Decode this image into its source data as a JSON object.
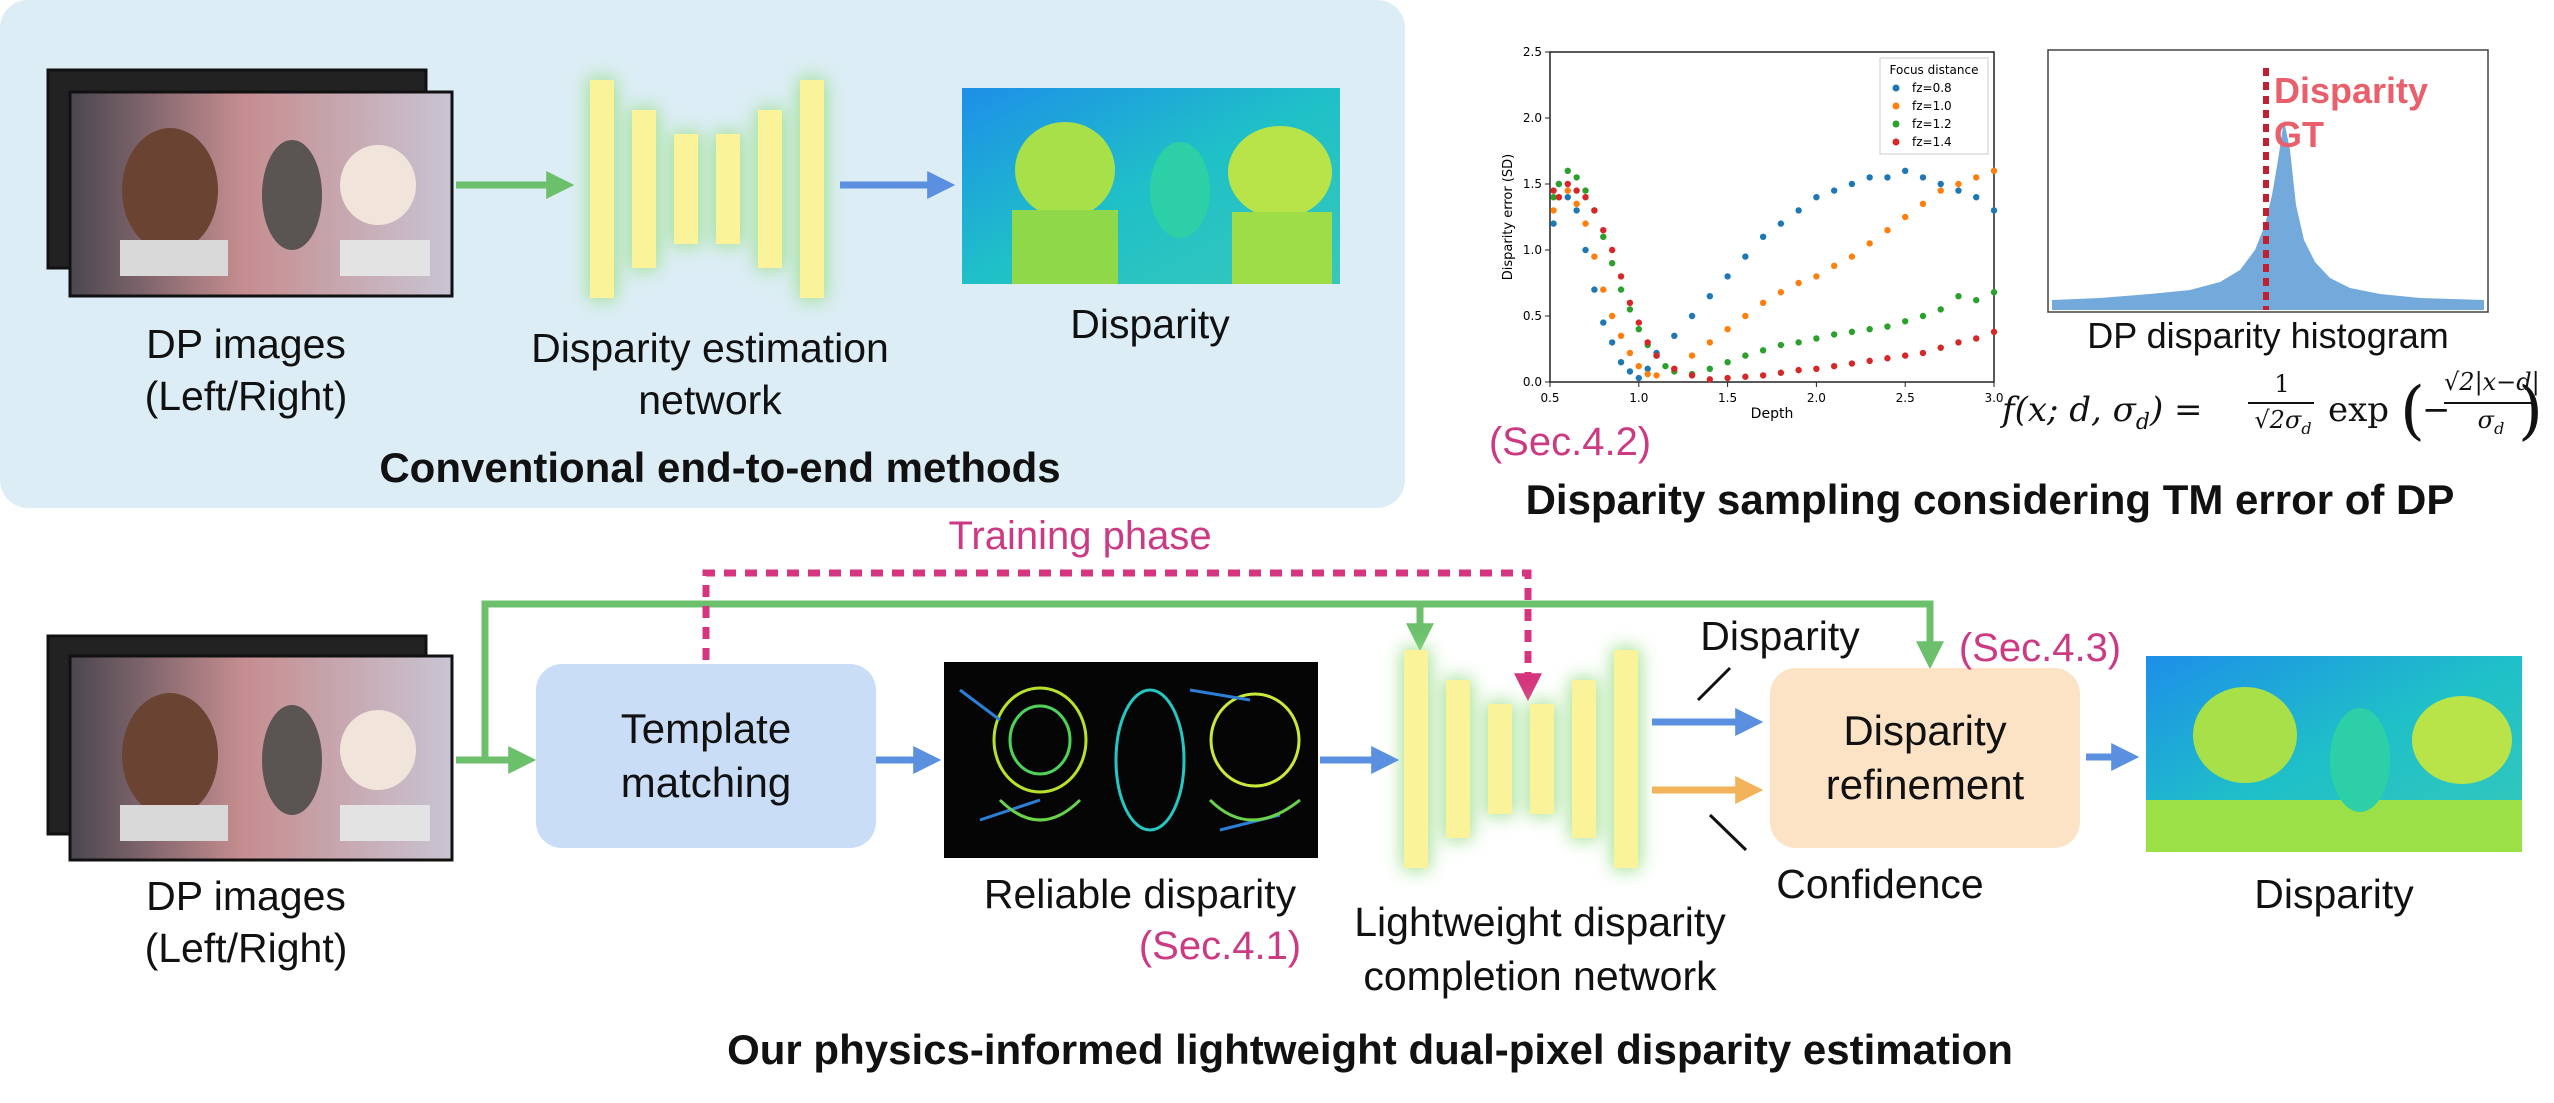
{
  "conventional": {
    "input_label_1": "DP images",
    "input_label_2": "(Left/Right)",
    "network_label_1": "Disparity estimation",
    "network_label_2": "network",
    "output_label": "Disparity",
    "title": "Conventional end-to-end methods"
  },
  "sampling": {
    "section": "(Sec.4.2)",
    "title": "Disparity sampling considering TM error of DP",
    "histogram_caption": "DP disparity histogram",
    "gt_label_1": "Disparity",
    "gt_label_2": "GT",
    "formula_lhs": "f(x; d, σ",
    "formula_lhs_sub": "d",
    "formula_eq": ") =",
    "formula_frac_num": "1",
    "formula_frac_den": "√2σ",
    "formula_frac_den_sub": "d",
    "formula_exp": "exp",
    "formula_inner_num": "√2|x−d|",
    "formula_inner_den": "σ",
    "formula_inner_den_sub": "d"
  },
  "proposed": {
    "input_label_1": "DP images",
    "input_label_2": "(Left/Right)",
    "training_phase": "Training phase",
    "tm_label_1": "Template",
    "tm_label_2": "matching",
    "reliable_label": "Reliable disparity",
    "reliable_section": "(Sec.4.1)",
    "network_label_1": "Lightweight disparity",
    "network_label_2": "completion network",
    "disparity_arrow_label": "Disparity",
    "confidence_arrow_label": "Confidence",
    "refine_section": "(Sec.4.3)",
    "refine_label_1": "Disparity",
    "refine_label_2": "refinement",
    "output_label": "Disparity",
    "title": "Our physics-informed lightweight dual-pixel disparity estimation"
  },
  "colors": {
    "green_arrow": "#6cc06c",
    "blue_arrow": "#5b8fe0",
    "orange_arrow": "#f2b35a",
    "pink_dashed": "#d6367f",
    "network_bar": "#fbf39a",
    "network_glow": "#9ee08f",
    "tm_box": "#c9ddf6",
    "refine_box": "#fde3c6",
    "conv_panel": "#dcedf5"
  },
  "chart_data": {
    "type": "scatter",
    "title": "",
    "xlabel": "Depth",
    "ylabel": "Disparity error (SD)",
    "xlim": [
      0.5,
      3.0
    ],
    "ylim": [
      0.0,
      2.5
    ],
    "xticks": [
      "0.5",
      "1.0",
      "1.5",
      "2.0",
      "2.5",
      "3.0"
    ],
    "yticks": [
      "0.0",
      "0.5",
      "1.0",
      "1.5",
      "2.0",
      "2.5"
    ],
    "legend_title": "Focus distance",
    "legend_position": "top-right",
    "grid": false,
    "series": [
      {
        "name": "fz=0.8",
        "color": "#1f77b4",
        "x": [
          0.52,
          0.55,
          0.6,
          0.65,
          0.7,
          0.75,
          0.8,
          0.85,
          0.9,
          0.95,
          1.0,
          1.05,
          1.1,
          1.2,
          1.3,
          1.4,
          1.5,
          1.6,
          1.7,
          1.8,
          1.9,
          2.0,
          2.1,
          2.2,
          2.3,
          2.4,
          2.5,
          2.6,
          2.7,
          2.8,
          2.9,
          3.0
        ],
        "y": [
          1.2,
          1.5,
          1.4,
          1.3,
          1.0,
          0.7,
          0.45,
          0.3,
          0.15,
          0.08,
          0.03,
          0.1,
          0.22,
          0.35,
          0.5,
          0.65,
          0.8,
          0.95,
          1.1,
          1.2,
          1.3,
          1.4,
          1.45,
          1.5,
          1.55,
          1.55,
          1.6,
          1.55,
          1.5,
          1.45,
          1.4,
          1.3
        ]
      },
      {
        "name": "fz=1.0",
        "color": "#ff7f0e",
        "x": [
          0.52,
          0.55,
          0.6,
          0.65,
          0.7,
          0.75,
          0.8,
          0.85,
          0.9,
          0.95,
          1.0,
          1.05,
          1.1,
          1.2,
          1.3,
          1.4,
          1.5,
          1.6,
          1.7,
          1.8,
          1.9,
          2.0,
          2.1,
          2.2,
          2.3,
          2.4,
          2.5,
          2.6,
          2.7,
          2.8,
          2.9,
          3.0
        ],
        "y": [
          1.3,
          1.4,
          1.45,
          1.35,
          1.2,
          0.95,
          0.7,
          0.5,
          0.35,
          0.22,
          0.12,
          0.06,
          0.05,
          0.1,
          0.2,
          0.3,
          0.4,
          0.5,
          0.6,
          0.68,
          0.75,
          0.8,
          0.88,
          0.95,
          1.05,
          1.15,
          1.25,
          1.35,
          1.45,
          1.5,
          1.55,
          1.6
        ]
      },
      {
        "name": "fz=1.2",
        "color": "#2ca02c",
        "x": [
          0.52,
          0.55,
          0.6,
          0.65,
          0.7,
          0.75,
          0.8,
          0.85,
          0.9,
          0.95,
          1.0,
          1.05,
          1.1,
          1.15,
          1.2,
          1.3,
          1.4,
          1.5,
          1.6,
          1.7,
          1.8,
          1.9,
          2.0,
          2.1,
          2.2,
          2.3,
          2.4,
          2.5,
          2.6,
          2.7,
          2.8,
          2.9,
          3.0
        ],
        "y": [
          1.4,
          1.5,
          1.6,
          1.55,
          1.45,
          1.3,
          1.1,
          0.9,
          0.7,
          0.55,
          0.4,
          0.28,
          0.2,
          0.12,
          0.08,
          0.06,
          0.1,
          0.15,
          0.2,
          0.24,
          0.28,
          0.3,
          0.33,
          0.36,
          0.38,
          0.4,
          0.42,
          0.46,
          0.5,
          0.55,
          0.65,
          0.62,
          0.68
        ]
      },
      {
        "name": "fz=1.4",
        "color": "#d62728",
        "x": [
          0.52,
          0.55,
          0.6,
          0.65,
          0.7,
          0.75,
          0.8,
          0.85,
          0.9,
          0.95,
          1.0,
          1.05,
          1.1,
          1.2,
          1.3,
          1.4,
          1.5,
          1.6,
          1.7,
          1.8,
          1.9,
          2.0,
          2.1,
          2.2,
          2.3,
          2.4,
          2.5,
          2.6,
          2.7,
          2.8,
          2.9,
          3.0
        ],
        "y": [
          1.45,
          1.4,
          1.5,
          1.45,
          1.4,
          1.3,
          1.15,
          1.0,
          0.8,
          0.6,
          0.45,
          0.3,
          0.2,
          0.1,
          0.05,
          0.02,
          0.03,
          0.04,
          0.05,
          0.07,
          0.09,
          0.1,
          0.12,
          0.14,
          0.16,
          0.18,
          0.2,
          0.22,
          0.26,
          0.3,
          0.33,
          0.38
        ]
      }
    ]
  }
}
